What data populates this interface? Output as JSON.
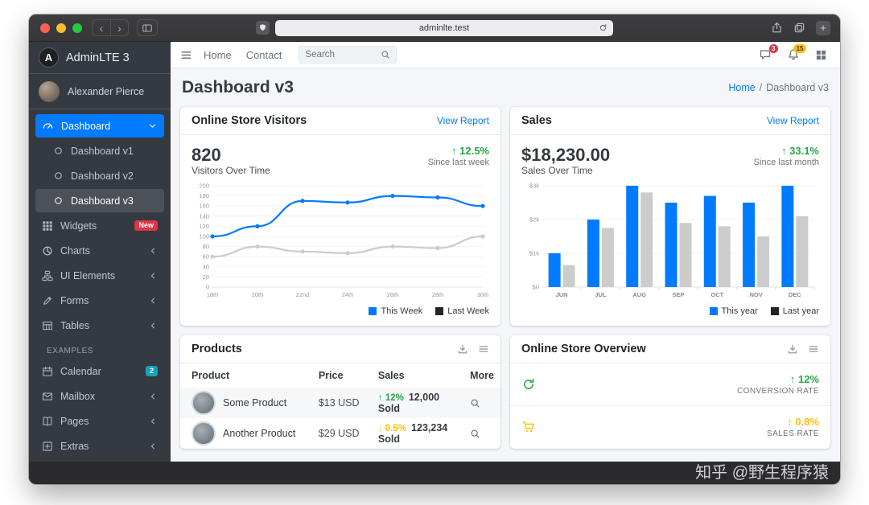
{
  "browser": {
    "url": "adminlte.test"
  },
  "navbar": {
    "links": [
      "Home",
      "Contact"
    ],
    "search_placeholder": "Search",
    "messages_badge": "3",
    "notifications_badge": "15"
  },
  "sidebar": {
    "brand": "AdminLTE 3",
    "brand_initial": "A",
    "user": "Alexander Pierce",
    "dashboard": {
      "label": "Dashboard",
      "children": [
        "Dashboard v1",
        "Dashboard v2",
        "Dashboard v3"
      ]
    },
    "items": [
      {
        "label": "Widgets",
        "badge": "New"
      },
      {
        "label": "Charts"
      },
      {
        "label": "UI Elements"
      },
      {
        "label": "Forms"
      },
      {
        "label": "Tables"
      }
    ],
    "section": "EXAMPLES",
    "examples": [
      {
        "label": "Calendar",
        "badge": "2"
      },
      {
        "label": "Mailbox"
      },
      {
        "label": "Pages"
      },
      {
        "label": "Extras"
      }
    ]
  },
  "page": {
    "title": "Dashboard v3",
    "breadcrumb_home": "Home",
    "breadcrumb_sep": "/",
    "breadcrumb_current": "Dashboard v3"
  },
  "visitors_card": {
    "title": "Online Store Visitors",
    "link": "View Report",
    "value": "820",
    "value_label": "Visitors Over Time",
    "delta_arrow": "↑",
    "delta": "12.5%",
    "delta_note": "Since last week"
  },
  "sales_card": {
    "title": "Sales",
    "link": "View Report",
    "value": "$18,230.00",
    "value_label": "Sales Over Time",
    "delta_arrow": "↑",
    "delta": "33.1%",
    "delta_note": "Since last month"
  },
  "products_card": {
    "title": "Products",
    "headers": [
      "Product",
      "Price",
      "Sales",
      "More"
    ],
    "rows": [
      {
        "name": "Some Product",
        "price": "$13 USD",
        "arrow": "↑",
        "delta": "12%",
        "sold": "12,000 Sold"
      },
      {
        "name": "Another Product",
        "price": "$29 USD",
        "arrow": "↓",
        "delta": "0.5%",
        "sold": "123,234 Sold"
      }
    ]
  },
  "overview_card": {
    "title": "Online Store Overview",
    "rows": [
      {
        "arrow": "↑",
        "delta": "12%",
        "label": "CONVERSION RATE"
      },
      {
        "arrow": "↑",
        "delta": "0.8%",
        "label": "SALES RATE"
      }
    ]
  },
  "chart_data": [
    {
      "type": "line",
      "title": "Visitors Over Time",
      "x": [
        "18th",
        "20th",
        "22nd",
        "24th",
        "26th",
        "28th",
        "30th"
      ],
      "series": [
        {
          "name": "This Week",
          "color": "#007bff",
          "values": [
            100,
            120,
            170,
            167,
            180,
            177,
            160
          ]
        },
        {
          "name": "Last Week",
          "color": "#cccccc",
          "legend_color": "#212529",
          "values": [
            60,
            80,
            70,
            67,
            80,
            77,
            100
          ]
        }
      ],
      "ylim": [
        0,
        200
      ],
      "ytick_step": 20,
      "grid": true,
      "legend_position": "bottom-right"
    },
    {
      "type": "bar",
      "title": "Sales Over Time",
      "x": [
        "JUN",
        "JUL",
        "AUG",
        "SEP",
        "OCT",
        "NOV",
        "DEC"
      ],
      "series": [
        {
          "name": "This year",
          "color": "#007bff",
          "values": [
            1000,
            2000,
            3000,
            2500,
            2700,
            2500,
            3000
          ]
        },
        {
          "name": "Last year",
          "color": "#cccccc",
          "legend_color": "#212529",
          "values": [
            650,
            1750,
            2800,
            1900,
            1800,
            1500,
            2100
          ]
        }
      ],
      "ylim": [
        0,
        3000
      ],
      "yticks": [
        "$0",
        "$1k",
        "$2k",
        "$3k"
      ],
      "grid": true,
      "legend_position": "bottom-right"
    }
  ],
  "watermark": "知乎 @野生程序猿"
}
